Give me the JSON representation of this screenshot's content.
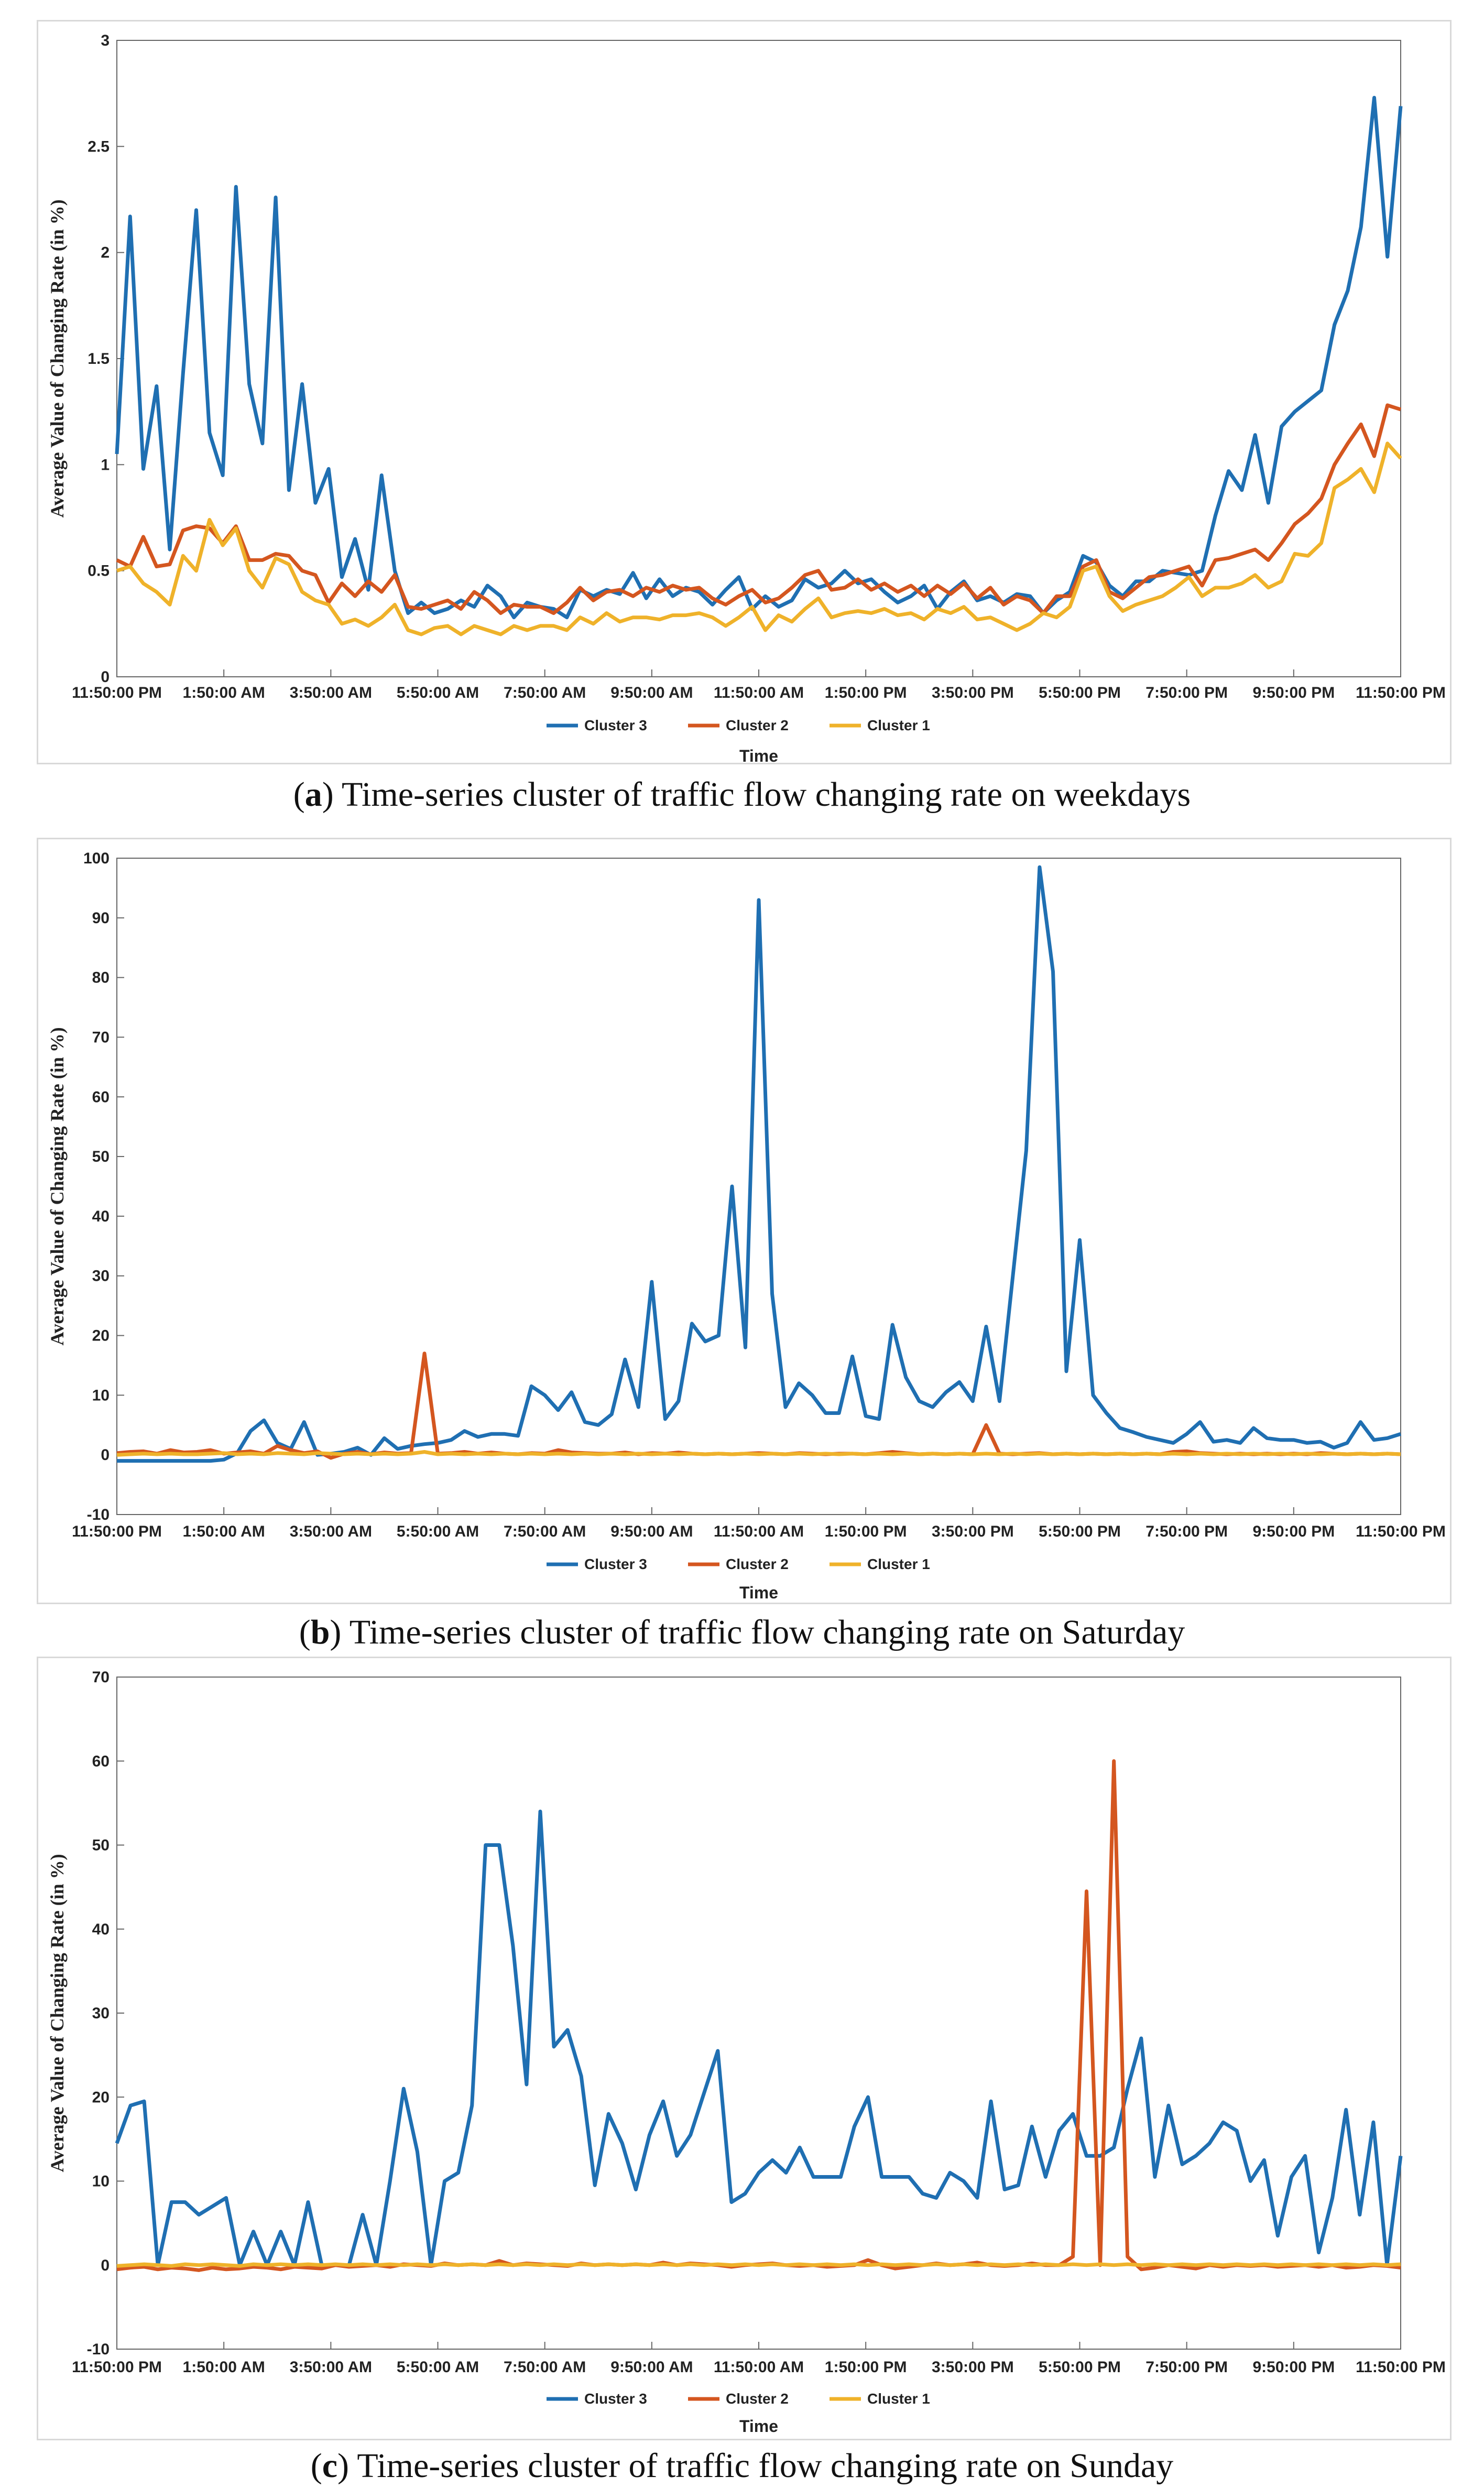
{
  "chart_data": [
    {
      "type": "line",
      "caption_letter": "a",
      "caption_text": "Time-series cluster of traffic flow changing rate on weekdays",
      "xlabel": "Time",
      "ylabel": "Average Value of Changing Rate (in %)",
      "ylim": [
        0,
        3
      ],
      "yticks": [
        0,
        0.5,
        1,
        1.5,
        2,
        2.5,
        3
      ],
      "xticks": [
        "11:50:00 PM",
        "1:50:00 AM",
        "3:50:00 AM",
        "5:50:00 AM",
        "7:50:00 AM",
        "9:50:00 AM",
        "11:50:00 AM",
        "1:50:00 PM",
        "3:50:00 PM",
        "5:50:00 PM",
        "7:50:00 PM",
        "9:50:00 PM",
        "11:50:00 PM"
      ],
      "legend": "bottom-center",
      "series": [
        {
          "name": "Cluster 3",
          "color": "#1f6fb2",
          "values": [
            1.05,
            2.17,
            0.98,
            1.37,
            0.6,
            1.43,
            2.2,
            1.15,
            0.95,
            2.31,
            1.38,
            1.1,
            2.26,
            0.88,
            1.38,
            0.82,
            0.98,
            0.47,
            0.65,
            0.41,
            0.95,
            0.5,
            0.3,
            0.35,
            0.3,
            0.32,
            0.36,
            0.33,
            0.43,
            0.38,
            0.28,
            0.35,
            0.33,
            0.32,
            0.28,
            0.41,
            0.38,
            0.41,
            0.39,
            0.49,
            0.37,
            0.46,
            0.38,
            0.42,
            0.4,
            0.34,
            0.41,
            0.47,
            0.32,
            0.38,
            0.33,
            0.36,
            0.46,
            0.42,
            0.44,
            0.5,
            0.44,
            0.46,
            0.4,
            0.35,
            0.38,
            0.43,
            0.32,
            0.4,
            0.45,
            0.36,
            0.38,
            0.35,
            0.39,
            0.38,
            0.3,
            0.36,
            0.4,
            0.57,
            0.54,
            0.43,
            0.38,
            0.45,
            0.45,
            0.5,
            0.49,
            0.48,
            0.5,
            0.76,
            0.97,
            0.88,
            1.14,
            0.82,
            1.18,
            1.25,
            1.3,
            1.35,
            1.66,
            1.82,
            2.12,
            2.73,
            1.98,
            2.69
          ]
        },
        {
          "name": "Cluster 2",
          "color": "#d4561f",
          "values": [
            0.55,
            0.52,
            0.66,
            0.52,
            0.53,
            0.69,
            0.71,
            0.7,
            0.63,
            0.71,
            0.55,
            0.55,
            0.58,
            0.57,
            0.5,
            0.48,
            0.35,
            0.44,
            0.38,
            0.45,
            0.4,
            0.48,
            0.33,
            0.32,
            0.34,
            0.36,
            0.32,
            0.4,
            0.36,
            0.3,
            0.34,
            0.33,
            0.33,
            0.3,
            0.35,
            0.42,
            0.36,
            0.4,
            0.41,
            0.38,
            0.42,
            0.4,
            0.43,
            0.41,
            0.42,
            0.37,
            0.34,
            0.38,
            0.41,
            0.35,
            0.37,
            0.42,
            0.48,
            0.5,
            0.41,
            0.42,
            0.46,
            0.41,
            0.44,
            0.4,
            0.43,
            0.38,
            0.43,
            0.39,
            0.44,
            0.37,
            0.42,
            0.34,
            0.38,
            0.36,
            0.3,
            0.38,
            0.38,
            0.52,
            0.55,
            0.4,
            0.37,
            0.42,
            0.47,
            0.48,
            0.5,
            0.52,
            0.43,
            0.55,
            0.56,
            0.58,
            0.6,
            0.55,
            0.63,
            0.72,
            0.77,
            0.84,
            1.0,
            1.1,
            1.19,
            1.04,
            1.28,
            1.26
          ]
        },
        {
          "name": "Cluster 1",
          "color": "#efb22a",
          "values": [
            0.5,
            0.52,
            0.44,
            0.4,
            0.34,
            0.57,
            0.5,
            0.74,
            0.62,
            0.7,
            0.5,
            0.42,
            0.56,
            0.53,
            0.4,
            0.36,
            0.34,
            0.25,
            0.27,
            0.24,
            0.28,
            0.34,
            0.22,
            0.2,
            0.23,
            0.24,
            0.2,
            0.24,
            0.22,
            0.2,
            0.24,
            0.22,
            0.24,
            0.24,
            0.22,
            0.28,
            0.25,
            0.3,
            0.26,
            0.28,
            0.28,
            0.27,
            0.29,
            0.29,
            0.3,
            0.28,
            0.24,
            0.28,
            0.33,
            0.22,
            0.29,
            0.26,
            0.32,
            0.37,
            0.28,
            0.3,
            0.31,
            0.3,
            0.32,
            0.29,
            0.3,
            0.27,
            0.32,
            0.3,
            0.33,
            0.27,
            0.28,
            0.25,
            0.22,
            0.25,
            0.3,
            0.28,
            0.33,
            0.5,
            0.52,
            0.38,
            0.31,
            0.34,
            0.36,
            0.38,
            0.42,
            0.47,
            0.38,
            0.42,
            0.42,
            0.44,
            0.48,
            0.42,
            0.45,
            0.58,
            0.57,
            0.63,
            0.89,
            0.93,
            0.98,
            0.87,
            1.1,
            1.03
          ]
        }
      ]
    },
    {
      "type": "line",
      "caption_letter": "b",
      "caption_text": "Time-series cluster of traffic flow changing rate on Saturday",
      "xlabel": "Time",
      "ylabel": "Average Value of Changing Rate (in %)",
      "ylim": [
        -10,
        100
      ],
      "yticks": [
        -10,
        0,
        10,
        20,
        30,
        40,
        50,
        60,
        70,
        80,
        90,
        100
      ],
      "xticks": [
        "11:50:00 PM",
        "1:50:00 AM",
        "3:50:00 AM",
        "5:50:00 AM",
        "7:50:00 AM",
        "9:50:00 AM",
        "11:50:00 AM",
        "1:50:00 PM",
        "3:50:00 PM",
        "5:50:00 PM",
        "7:50:00 PM",
        "9:50:00 PM",
        "11:50:00 PM"
      ],
      "legend": "bottom-center",
      "series": [
        {
          "name": "Cluster 3",
          "color": "#1f6fb2",
          "values": [
            -1,
            -1,
            -1,
            -1,
            -1,
            -1,
            -1,
            -1,
            -0.8,
            0.3,
            4,
            5.8,
            2,
            1,
            5.5,
            0,
            0.2,
            0.5,
            1.2,
            0,
            2.8,
            1,
            1.5,
            1.8,
            2,
            2.5,
            4,
            3,
            3.5,
            3.5,
            3.2,
            11.5,
            10,
            7.5,
            10.5,
            5.5,
            5,
            6.8,
            16,
            8,
            29,
            6,
            9,
            22,
            19,
            20,
            45,
            18,
            93,
            27,
            8,
            12,
            10,
            7,
            7,
            16.5,
            6.5,
            6,
            21.8,
            13,
            9,
            8,
            10.5,
            12.2,
            9,
            21.5,
            9,
            30,
            51,
            98.5,
            81,
            14,
            36,
            10,
            7,
            4.5,
            3.8,
            3,
            2.5,
            2,
            3.5,
            5.5,
            2.2,
            2.5,
            2,
            4.5,
            2.8,
            2.5,
            2.5,
            2,
            2.2,
            1.2,
            2,
            5.5,
            2.5,
            2.8,
            3.5
          ]
        },
        {
          "name": "Cluster 2",
          "color": "#d4561f",
          "values": [
            0.3,
            0.5,
            0.6,
            0.2,
            0.8,
            0.4,
            0.5,
            0.8,
            0.2,
            0.4,
            0.6,
            0.2,
            1.5,
            0.8,
            0.3,
            0.6,
            -0.5,
            0.2,
            0.5,
            0.1,
            0.4,
            0.2,
            0.3,
            17,
            0.2,
            0.3,
            0.5,
            0.2,
            0.4,
            0.2,
            0.1,
            0.3,
            0.2,
            0.8,
            0.4,
            0.3,
            0.2,
            0.2,
            0.4,
            0.1,
            0.3,
            0.2,
            0.4,
            0.2,
            0.1,
            0.2,
            0.1,
            0.2,
            0.3,
            0.2,
            0.1,
            0.3,
            0.2,
            0.1,
            0.2,
            0.2,
            0.1,
            0.3,
            0.5,
            0.3,
            0.1,
            0.2,
            0.1,
            0.2,
            0.1,
            5,
            0.2,
            0.1,
            0.2,
            0.3,
            0.1,
            0.2,
            0.1,
            0.2,
            0.1,
            0.2,
            0.1,
            0.2,
            0.1,
            0.5,
            0.6,
            0.3,
            0.2,
            0.1,
            0.2,
            0.1,
            0.2,
            0.1,
            0.2,
            0.1,
            0.3,
            0.2,
            0.1,
            0.2,
            0.1,
            0.2,
            0.1
          ]
        },
        {
          "name": "Cluster 1",
          "color": "#efb22a",
          "values": [
            0,
            0.1,
            0.2,
            0.1,
            0.2,
            0.1,
            0.1,
            0.2,
            0.3,
            0.1,
            0.2,
            0.1,
            0.3,
            0.2,
            0.1,
            0.3,
            0.2,
            0.1,
            0.2,
            0.1,
            0.2,
            0.1,
            0.2,
            0.5,
            0.1,
            0.2,
            0.1,
            0.2,
            0.1,
            0.2,
            0.1,
            0.2,
            0.1,
            0.2,
            0.1,
            0.2,
            0.1,
            0.2,
            0.1,
            0.2,
            0.1,
            0.2,
            0.1,
            0.2,
            0.1,
            0.2,
            0.1,
            0.2,
            0.1,
            0.2,
            0.1,
            0.2,
            0.1,
            0.2,
            0.1,
            0.2,
            0.1,
            0.2,
            0.1,
            0.2,
            0.1,
            0.2,
            0.1,
            0.2,
            0.1,
            0.2,
            0.1,
            0.2,
            0.1,
            0.2,
            0.1,
            0.2,
            0.1,
            0.2,
            0.1,
            0.2,
            0.1,
            0.2,
            0.1,
            0.2,
            0.1,
            0.2,
            0.1,
            0.2,
            0.1,
            0.2,
            0.1,
            0.2,
            0.1,
            0.2,
            0.1,
            0.2,
            0.1,
            0.2,
            0.1,
            0.2,
            0.1
          ]
        }
      ]
    },
    {
      "type": "line",
      "caption_letter": "c",
      "caption_text": "Time-series cluster of traffic flow changing rate on Sunday",
      "xlabel": "Time",
      "ylabel": "Average Value of Changing Rate (in %)",
      "ylim": [
        -10,
        70
      ],
      "yticks": [
        -10,
        0,
        10,
        20,
        30,
        40,
        50,
        60,
        70
      ],
      "xticks": [
        "11:50:00 PM",
        "1:50:00 AM",
        "3:50:00 AM",
        "5:50:00 AM",
        "7:50:00 AM",
        "9:50:00 AM",
        "11:50:00 AM",
        "1:50:00 PM",
        "3:50:00 PM",
        "5:50:00 PM",
        "7:50:00 PM",
        "9:50:00 PM",
        "11:50:00 PM"
      ],
      "legend": "bottom-center",
      "series": [
        {
          "name": "Cluster 3",
          "color": "#1f6fb2",
          "values": [
            14.5,
            19,
            19.5,
            0,
            7.5,
            7.5,
            6,
            7,
            8,
            0,
            4,
            0,
            4,
            0,
            7.5,
            0,
            0,
            0,
            6,
            0,
            10,
            21,
            13.5,
            0,
            10,
            11,
            19,
            50,
            50,
            38,
            21.5,
            54,
            26,
            28,
            22.5,
            9.5,
            18,
            14.5,
            9,
            15.5,
            19.5,
            13,
            15.5,
            20.5,
            25.5,
            7.5,
            8.5,
            11,
            12.5,
            11,
            14,
            10.5,
            10.5,
            10.5,
            16.5,
            20,
            10.5,
            10.5,
            10.5,
            8.5,
            8,
            11,
            10,
            8,
            19.5,
            9,
            9.5,
            16.5,
            10.5,
            16,
            18,
            13,
            13,
            14,
            21,
            27,
            10.5,
            19,
            12,
            13,
            14.5,
            17,
            16,
            10,
            12.5,
            3.5,
            10.5,
            13,
            1.5,
            8,
            18.5,
            6,
            17,
            0,
            13
          ]
        },
        {
          "name": "Cluster 2",
          "color": "#d4561f",
          "values": [
            -0.5,
            -0.3,
            -0.2,
            -0.5,
            -0.3,
            -0.4,
            -0.6,
            -0.3,
            -0.5,
            -0.4,
            -0.2,
            -0.3,
            -0.5,
            -0.2,
            -0.3,
            -0.4,
            0,
            -0.2,
            -0.1,
            0,
            -0.2,
            0.1,
            0,
            -0.1,
            0.2,
            0,
            0.1,
            0,
            0.5,
            0,
            0.2,
            0.1,
            0,
            -0.1,
            0.2,
            0,
            0.1,
            0,
            0.1,
            0,
            0.3,
            0,
            0.2,
            0.1,
            0,
            -0.2,
            0,
            0.1,
            0.2,
            0,
            -0.1,
            0,
            -0.2,
            -0.1,
            0,
            0.6,
            0,
            -0.4,
            -0.2,
            0,
            0.2,
            0,
            0.1,
            0.3,
            0,
            -0.1,
            0,
            0.2,
            0,
            0,
            1,
            44.5,
            0,
            60,
            1,
            -0.5,
            -0.3,
            0,
            -0.2,
            -0.4,
            0,
            -0.2,
            0,
            -0.1,
            0,
            -0.2,
            -0.1,
            0,
            -0.2,
            0,
            -0.3,
            -0.2,
            0,
            -0.1,
            -0.3
          ]
        },
        {
          "name": "Cluster 1",
          "color": "#efb22a",
          "values": [
            -0.1,
            0,
            0.1,
            0,
            -0.1,
            0.1,
            0,
            0.1,
            0,
            -0.1,
            0.1,
            0,
            0.1,
            0,
            0.1,
            0,
            0.1,
            0,
            0.1,
            0,
            0.1,
            0,
            0.1,
            0,
            0.1,
            0,
            0.1,
            0,
            0.1,
            0,
            0.1,
            0,
            0.1,
            0,
            0.1,
            0,
            0.1,
            0,
            0.1,
            0,
            0.1,
            0,
            0.1,
            0,
            0.1,
            0,
            0.1,
            0,
            0.1,
            0,
            0.1,
            0,
            0.1,
            0,
            0.1,
            0,
            0.1,
            0,
            0.1,
            0,
            0.1,
            0,
            0.1,
            0,
            0.1,
            0,
            0.1,
            0,
            0.1,
            0,
            0.1,
            0,
            0.1,
            0,
            0.1,
            0,
            0.1,
            0,
            0.1,
            0,
            0.1,
            0,
            0.1,
            0,
            0.1,
            0,
            0.1,
            0,
            0.1,
            0,
            0.1,
            0,
            0.1,
            0,
            0.1
          ]
        }
      ]
    }
  ]
}
